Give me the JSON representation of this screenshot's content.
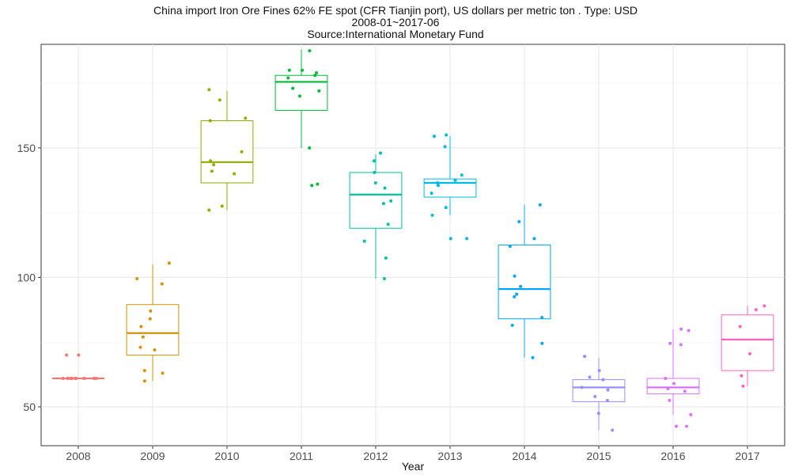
{
  "chart_data": {
    "type": "boxplot",
    "title": "China import Iron Ore Fines 62% FE spot (CFR Tianjin port), US dollars per metric ton . Type: USD",
    "subtitle_lines": [
      "2008-01~2017-06",
      "Source:International Monetary Fund"
    ],
    "xlabel": "Year",
    "ylabel": "",
    "ylim": [
      35,
      190
    ],
    "yticks": [
      50,
      100,
      150
    ],
    "grid": true,
    "legend": "none",
    "categories": [
      "2008",
      "2009",
      "2010",
      "2011",
      "2012",
      "2013",
      "2014",
      "2015",
      "2016",
      "2017"
    ],
    "colors": [
      "#F8766D",
      "#D39200",
      "#93AA00",
      "#00BA38",
      "#00C19F",
      "#00B9E3",
      "#00A5FF",
      "#9590FF",
      "#DB72FB",
      "#FF61C3"
    ],
    "boxes": [
      {
        "year": "2008",
        "whisker_low": 61,
        "q1": 61,
        "median": 61,
        "q3": 61,
        "whisker_high": 61,
        "points": [
          61,
          61,
          61,
          61,
          61,
          61,
          61,
          61,
          61,
          61,
          70,
          70
        ]
      },
      {
        "year": "2009",
        "whisker_low": 60,
        "q1": 70,
        "median": 78.5,
        "q3": 89.5,
        "whisker_high": 105,
        "points": [
          60,
          63,
          64,
          72,
          73,
          77,
          81,
          84,
          87,
          97.5,
          99.5,
          105.5
        ]
      },
      {
        "year": "2010",
        "whisker_low": 126,
        "q1": 136.5,
        "median": 144.5,
        "q3": 160.5,
        "whisker_high": 172,
        "points": [
          126,
          127.5,
          140,
          141,
          143.5,
          145,
          148.5,
          160.5,
          161.5,
          168.5,
          172.5
        ]
      },
      {
        "year": "2011",
        "whisker_low": 150,
        "q1": 164.5,
        "median": 175.5,
        "q3": 178,
        "whisker_high": 188,
        "points": [
          135.5,
          136,
          150,
          170,
          172,
          173,
          177,
          178,
          179,
          180,
          180,
          187.5
        ]
      },
      {
        "year": "2012",
        "whisker_low": 99.5,
        "q1": 119,
        "median": 132,
        "q3": 140.5,
        "whisker_high": 147.5,
        "points": [
          99.5,
          107.5,
          114,
          120.5,
          128.5,
          129.5,
          134.5,
          136.5,
          140.5,
          145,
          148
        ]
      },
      {
        "year": "2013",
        "whisker_low": 124,
        "q1": 131,
        "median": 136.5,
        "q3": 138,
        "whisker_high": 154.5,
        "points": [
          115,
          115,
          124,
          127,
          132.5,
          135.5,
          136.5,
          137.5,
          139.5,
          150.5,
          154.5,
          155
        ]
      },
      {
        "year": "2014",
        "whisker_low": 69,
        "q1": 84,
        "median": 95.5,
        "q3": 112.5,
        "whisker_high": 128,
        "points": [
          69,
          74.5,
          81.5,
          84.5,
          92.5,
          93.5,
          96.5,
          100.5,
          112,
          115,
          121.5,
          128
        ]
      },
      {
        "year": "2015",
        "whisker_low": 41,
        "q1": 52,
        "median": 57.5,
        "q3": 60.5,
        "whisker_high": 69,
        "points": [
          41,
          47.5,
          52.5,
          54,
          56.5,
          57.5,
          60.5,
          61.5,
          64,
          69.5
        ]
      },
      {
        "year": "2016",
        "whisker_low": 47,
        "q1": 55,
        "median": 57.5,
        "q3": 61,
        "whisker_high": 80,
        "points": [
          42.5,
          42.5,
          47,
          52.5,
          56,
          57,
          59,
          61,
          74,
          74.5,
          79.5,
          80
        ]
      },
      {
        "year": "2017",
        "whisker_low": 58,
        "q1": 64,
        "median": 76,
        "q3": 85.5,
        "whisker_high": 89,
        "points": [
          58,
          62,
          70.5,
          81,
          87.5,
          89
        ]
      }
    ]
  }
}
